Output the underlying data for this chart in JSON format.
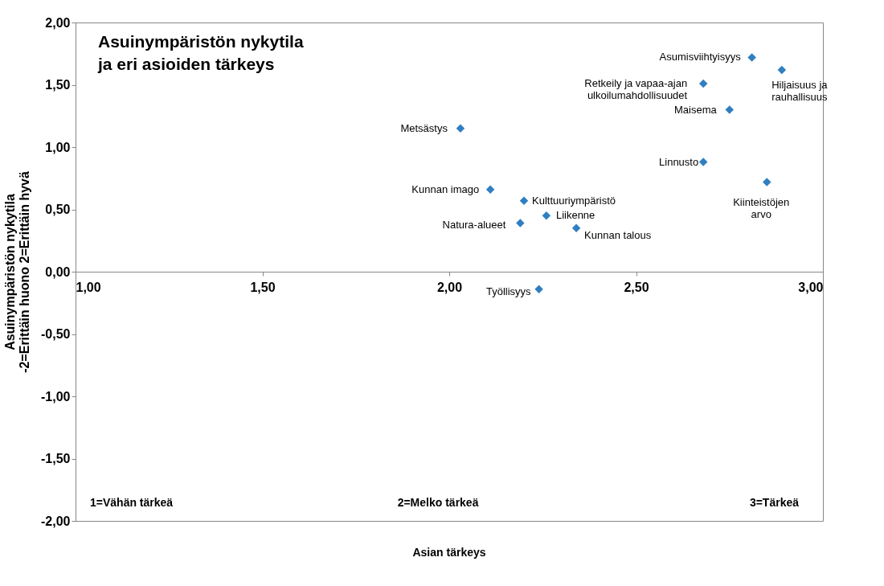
{
  "chart_data": {
    "type": "scatter",
    "title": "Asuinympäristön nykytila\nja eri asioiden tärkeys",
    "xlabel": "Asian tärkeys",
    "ylabel": "Asuinympäristön nykytila\n-2=Erittäin huono 2=Erittäin hyvä",
    "xlim": [
      1,
      3
    ],
    "xticks": [
      {
        "value": 1,
        "label": "1,00"
      },
      {
        "value": 1.5,
        "label": "1,50"
      },
      {
        "value": 2,
        "label": "2,00"
      },
      {
        "value": 2.5,
        "label": "2,50"
      },
      {
        "value": 3,
        "label": "3,00"
      }
    ],
    "ylim": [
      -2,
      2
    ],
    "yticks": [
      {
        "value": -2,
        "label": "-2,00"
      },
      {
        "value": -1.5,
        "label": "-1,50"
      },
      {
        "value": -1,
        "label": "-1,00"
      },
      {
        "value": -0.5,
        "label": "-0,50"
      },
      {
        "value": 0,
        "label": "0,00"
      },
      {
        "value": 0.5,
        "label": "0,50"
      },
      {
        "value": 1,
        "label": "1,00"
      },
      {
        "value": 1.5,
        "label": "1,50"
      },
      {
        "value": 2,
        "label": "2,00"
      }
    ],
    "grid": false,
    "legend": false,
    "marker": "diamond",
    "series": [
      {
        "name": "Asumisviihtyisyys",
        "color": "#2f7fc1",
        "x": [
          2.81
        ],
        "values": [
          1.72
        ]
      },
      {
        "name": "Hiljaisuus ja\nrauhallisuus",
        "color": "#2f7fc1",
        "x": [
          2.89
        ],
        "values": [
          1.62
        ]
      },
      {
        "name": "Retkeily ja vapaa-ajan\nulkoilumahdollisuudet",
        "color": "#2f7fc1",
        "x": [
          2.68
        ],
        "values": [
          1.51
        ]
      },
      {
        "name": "Maisema",
        "color": "#2f7fc1",
        "x": [
          2.75
        ],
        "values": [
          1.3
        ]
      },
      {
        "name": "Metsästys",
        "color": "#2f7fc1",
        "x": [
          2.03
        ],
        "values": [
          1.15
        ]
      },
      {
        "name": "Linnusto",
        "color": "#2f7fc1",
        "x": [
          2.68
        ],
        "values": [
          0.88
        ]
      },
      {
        "name": "Kiinteistöjen\narvo",
        "color": "#2f7fc1",
        "x": [
          2.85
        ],
        "values": [
          0.72
        ]
      },
      {
        "name": "Kunnan imago",
        "color": "#2f7fc1",
        "x": [
          2.11
        ],
        "values": [
          0.66
        ]
      },
      {
        "name": "Kulttuuriympäristö",
        "color": "#2f7fc1",
        "x": [
          2.2
        ],
        "values": [
          0.57
        ]
      },
      {
        "name": "Liikenne",
        "color": "#2f7fc1",
        "x": [
          2.26
        ],
        "values": [
          0.45
        ]
      },
      {
        "name": "Natura-alueet",
        "color": "#2f7fc1",
        "x": [
          2.19
        ],
        "values": [
          0.39
        ]
      },
      {
        "name": "Kunnan talous",
        "color": "#2f7fc1",
        "x": [
          2.34
        ],
        "values": [
          0.35
        ]
      },
      {
        "name": "Työllisyys",
        "color": "#2f7fc1",
        "x": [
          2.24
        ],
        "values": [
          -0.14
        ]
      }
    ],
    "annotations": [
      "1=Vähän tärkeä",
      "2=Melko tärkeä",
      "3=Tärkeä"
    ]
  }
}
